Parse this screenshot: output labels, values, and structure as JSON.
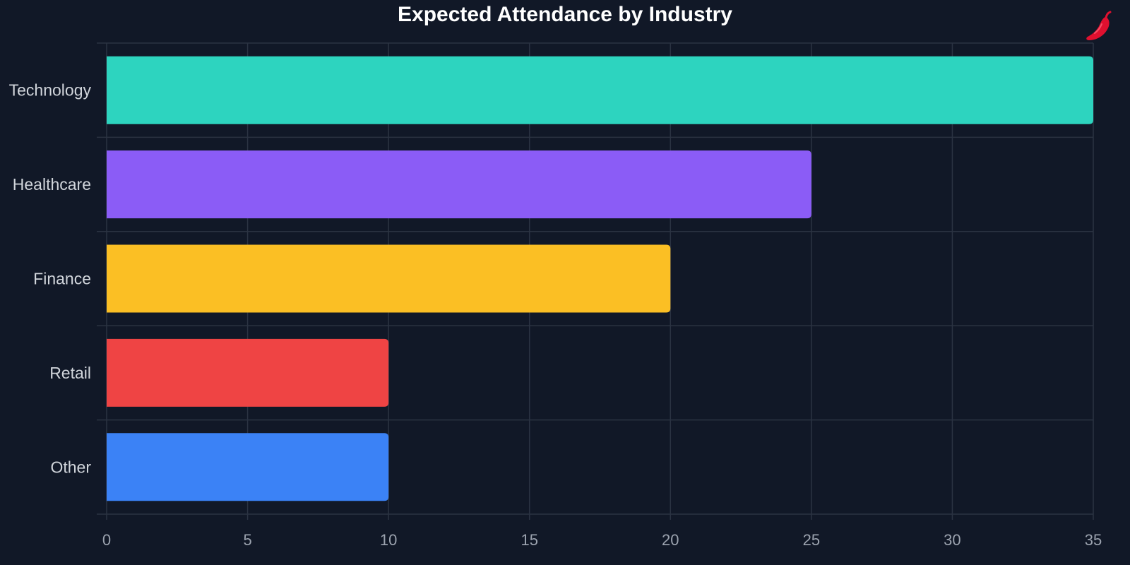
{
  "chart_data": {
    "type": "bar",
    "orientation": "horizontal",
    "title": "Expected Attendance by Industry",
    "xlabel": "",
    "ylabel": "",
    "categories": [
      "Technology",
      "Healthcare",
      "Finance",
      "Retail",
      "Other"
    ],
    "values": [
      35,
      25,
      20,
      10,
      10
    ],
    "colors": [
      "#2dd4bf",
      "#8b5cf6",
      "#fbbf24",
      "#ef4444",
      "#3b82f6"
    ],
    "xlim": [
      0,
      35
    ],
    "xticks": [
      0,
      5,
      10,
      15,
      20,
      25,
      30,
      35
    ],
    "grid": true,
    "legend": "none"
  },
  "theme": {
    "background": "#111827",
    "grid_color": "#2b3342",
    "title_color": "#ffffff",
    "category_label_color": "#d1d5db",
    "tick_label_color": "#9ca3af",
    "logo_color": "#e0102f"
  },
  "logo": {
    "icon": "chili-pepper-icon"
  }
}
